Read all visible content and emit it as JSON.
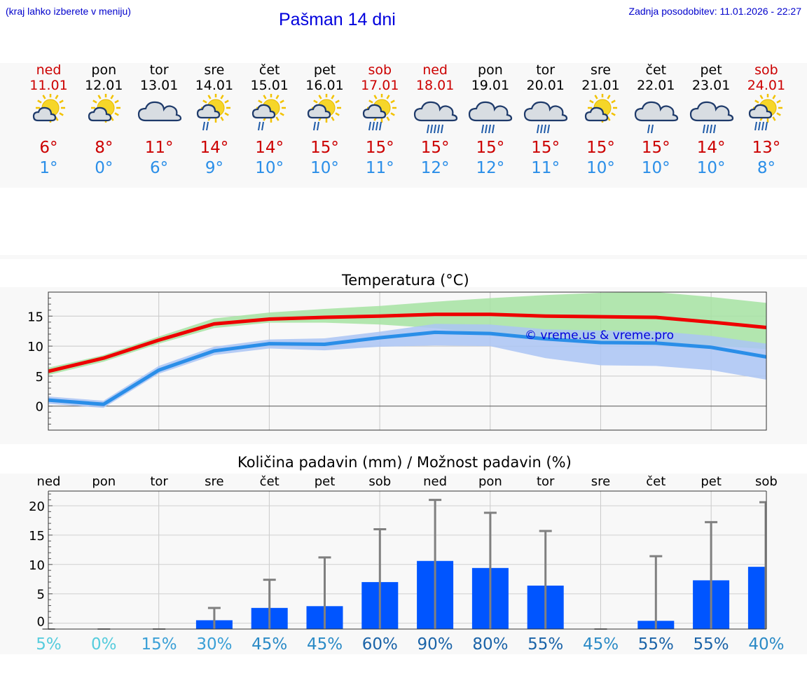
{
  "header": {
    "left_note": "(kraj lahko izberete v meniju)",
    "title": "Pašman 14 dni",
    "updated": "Zadnja posodobitev: 11.01.2026 - 22:27"
  },
  "days": [
    {
      "name": "ned",
      "date": "11.01",
      "weekend": true,
      "icon": "sun-cloud-icon",
      "tmax": "6°",
      "tmin": "1°"
    },
    {
      "name": "pon",
      "date": "12.01",
      "weekend": false,
      "icon": "sun-cloud-icon",
      "tmax": "8°",
      "tmin": "0°"
    },
    {
      "name": "tor",
      "date": "13.01",
      "weekend": false,
      "icon": "cloud-icon",
      "tmax": "11°",
      "tmin": "6°"
    },
    {
      "name": "sre",
      "date": "14.01",
      "weekend": false,
      "icon": "sun-cloud-light-rain-icon",
      "tmax": "14°",
      "tmin": "9°"
    },
    {
      "name": "čet",
      "date": "15.01",
      "weekend": false,
      "icon": "sun-cloud-light-rain-icon",
      "tmax": "14°",
      "tmin": "10°"
    },
    {
      "name": "pet",
      "date": "16.01",
      "weekend": false,
      "icon": "sun-cloud-light-rain-icon",
      "tmax": "15°",
      "tmin": "10°"
    },
    {
      "name": "sob",
      "date": "17.01",
      "weekend": true,
      "icon": "sun-cloud-rain-icon",
      "tmax": "15°",
      "tmin": "11°"
    },
    {
      "name": "ned",
      "date": "18.01",
      "weekend": true,
      "icon": "cloud-heavy-rain-icon",
      "tmax": "15°",
      "tmin": "12°"
    },
    {
      "name": "pon",
      "date": "19.01",
      "weekend": false,
      "icon": "cloud-rain-icon",
      "tmax": "15°",
      "tmin": "12°"
    },
    {
      "name": "tor",
      "date": "20.01",
      "weekend": false,
      "icon": "cloud-rain-icon",
      "tmax": "15°",
      "tmin": "11°"
    },
    {
      "name": "sre",
      "date": "21.01",
      "weekend": false,
      "icon": "sun-cloud-icon",
      "tmax": "15°",
      "tmin": "10°"
    },
    {
      "name": "čet",
      "date": "22.01",
      "weekend": false,
      "icon": "cloud-light-rain-icon",
      "tmax": "15°",
      "tmin": "10°"
    },
    {
      "name": "pet",
      "date": "23.01",
      "weekend": false,
      "icon": "cloud-rain-icon",
      "tmax": "14°",
      "tmin": "10°"
    },
    {
      "name": "sob",
      "date": "24.01",
      "weekend": true,
      "icon": "sun-cloud-rain-icon",
      "tmax": "13°",
      "tmin": "8°"
    }
  ],
  "colors": {
    "max_line": "#ee0000",
    "min_line": "#2a8ee8",
    "max_band": "#a6e3a2",
    "min_band": "#aac4f4",
    "bar": "#0055ff",
    "whisker": "#808080",
    "weekend": "#cc0000"
  },
  "chart_data": [
    {
      "type": "line",
      "title": "Temperatura (°C)",
      "x": [
        0,
        1,
        2,
        3,
        4,
        5,
        6,
        7,
        8,
        9,
        10,
        11,
        12,
        13
      ],
      "ylim": [
        -4,
        19
      ],
      "yticks": [
        "0",
        "5",
        "10",
        "15"
      ],
      "watermark": "© vreme.us & vreme.pro",
      "series": [
        {
          "name": "max",
          "values": [
            5.8,
            8.0,
            11.0,
            13.7,
            14.5,
            14.8,
            15.0,
            15.3,
            15.3,
            15.0,
            14.9,
            14.8,
            14.0,
            13.1
          ],
          "band_low": [
            5.2,
            7.4,
            10.4,
            13.0,
            13.9,
            13.9,
            13.6,
            13.0,
            12.0,
            11.0,
            10.8,
            10.5,
            10.1,
            9.5
          ],
          "band_high": [
            6.4,
            8.5,
            11.6,
            14.6,
            15.6,
            16.2,
            16.7,
            17.4,
            18.0,
            18.5,
            18.9,
            19.0,
            18.2,
            17.2
          ]
        },
        {
          "name": "min",
          "values": [
            1.0,
            0.3,
            6.0,
            9.2,
            10.4,
            10.3,
            11.4,
            12.3,
            12.1,
            11.2,
            10.6,
            10.5,
            9.8,
            8.2
          ],
          "band_low": [
            0.4,
            -0.3,
            5.4,
            8.5,
            9.6,
            9.3,
            9.9,
            10.1,
            10.0,
            8.0,
            6.8,
            6.7,
            6.0,
            4.4
          ],
          "band_high": [
            1.6,
            0.9,
            6.7,
            9.9,
            11.1,
            11.3,
            12.4,
            13.7,
            13.6,
            12.8,
            12.6,
            12.5,
            11.7,
            10.4
          ]
        }
      ]
    },
    {
      "type": "bar",
      "title": "Količina padavin (mm) / Možnost padavin (%)",
      "categories": [
        "ned",
        "pon",
        "tor",
        "sre",
        "čet",
        "pet",
        "sob",
        "ned",
        "pon",
        "tor",
        "sre",
        "čet",
        "pet",
        "sob"
      ],
      "ylim": [
        -1,
        22.5
      ],
      "yticks": [
        "0",
        "5",
        "10",
        "15",
        "20"
      ],
      "values": [
        0,
        0,
        0,
        0.5,
        2.6,
        2.9,
        7.0,
        10.6,
        9.4,
        6.4,
        0,
        0.4,
        7.3,
        9.6
      ],
      "error_high": [
        0,
        0,
        0,
        2.6,
        7.4,
        11.2,
        16.0,
        21.0,
        18.8,
        15.7,
        0,
        11.4,
        17.2,
        20.6
      ],
      "chance": [
        "5%",
        "0%",
        "15%",
        "30%",
        "45%",
        "45%",
        "60%",
        "90%",
        "80%",
        "55%",
        "45%",
        "55%",
        "55%",
        "40%"
      ],
      "chance_colors": [
        "#55ccdd",
        "#55ccdd",
        "#3a9fd6",
        "#3a9fd6",
        "#2a8ac6",
        "#2a8ac6",
        "#1a63a8",
        "#1a63a8",
        "#1a63a8",
        "#1a63a8",
        "#2a8ac6",
        "#1a63a8",
        "#1a63a8",
        "#2a8ac6"
      ]
    }
  ]
}
